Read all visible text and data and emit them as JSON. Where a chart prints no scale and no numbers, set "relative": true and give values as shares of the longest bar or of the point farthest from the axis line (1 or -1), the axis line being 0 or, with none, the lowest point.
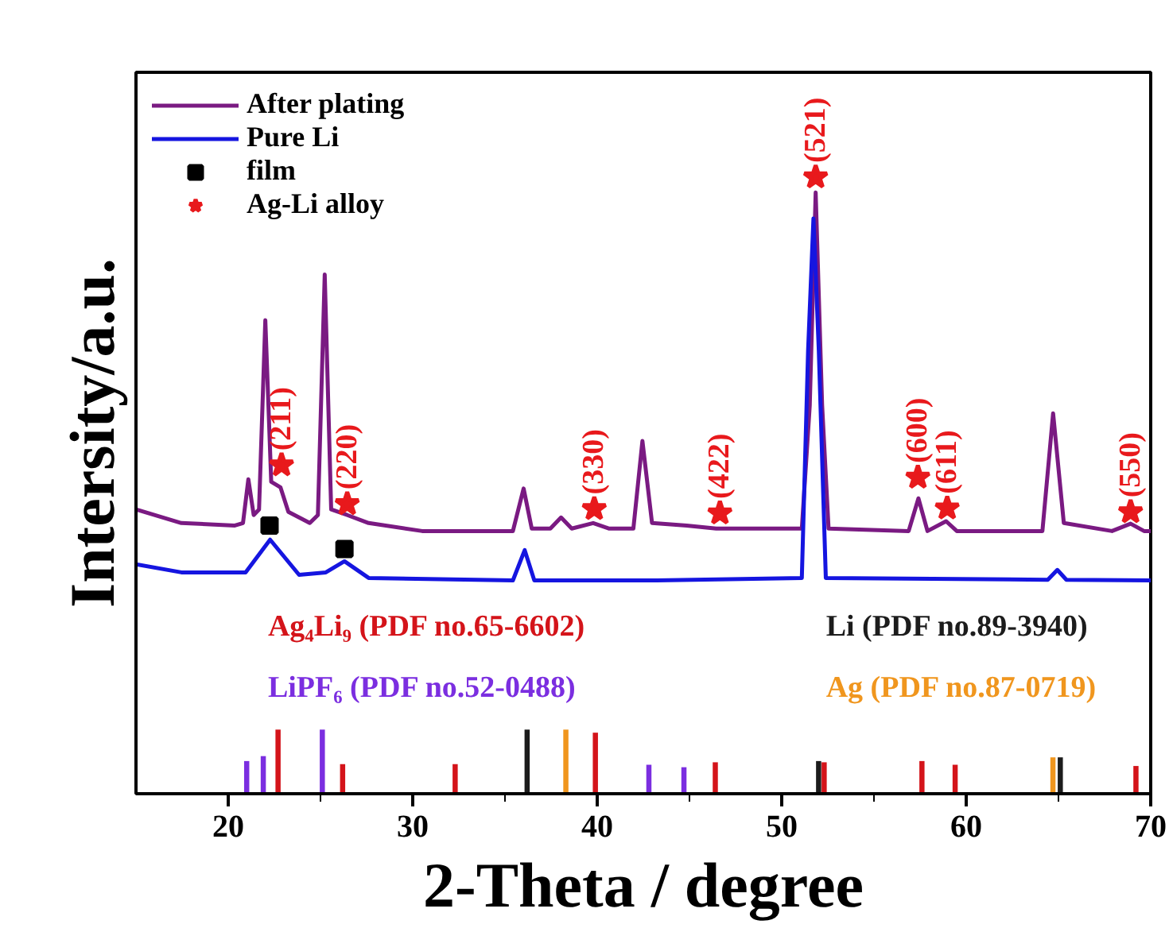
{
  "chart_data": {
    "type": "line",
    "xlabel": "2-Theta / degree",
    "ylabel": "Intersity/a.u.",
    "xlim": [
      15,
      70
    ],
    "xticks": [
      20,
      {
        "value": 25,
        "label": null
      },
      30,
      {
        "value": 35,
        "label": null
      },
      40,
      {
        "value": 45,
        "label": null
      },
      50,
      {
        "value": 55,
        "label": null
      },
      60,
      {
        "value": 65,
        "label": null
      },
      70
    ],
    "relative": true,
    "tick_labels": "x",
    "legend": "top left",
    "series": [
      {
        "name": "After plating",
        "color": "#7a1a82",
        "x": [
          15.0,
          17.46,
          20.36,
          20.8,
          21.09,
          21.38,
          21.67,
          22.01,
          22.33,
          22.83,
          23.26,
          24.42,
          24.86,
          25.23,
          25.58,
          26.45,
          27.61,
          30.51,
          35.43,
          36.01,
          36.45,
          37.46,
          38.04,
          38.62,
          39.78,
          40.65,
          41.96,
          42.45,
          42.97,
          44.85,
          46.45,
          51.09,
          51.52,
          51.84,
          52.19,
          52.54,
          56.88,
          57.41,
          57.9,
          58.91,
          59.49,
          64.13,
          64.71,
          65.29,
          67.9,
          68.91,
          69.64,
          70.0
        ],
        "values": [
          0.461,
          0.439,
          0.435,
          0.439,
          0.51,
          0.452,
          0.461,
          0.768,
          0.506,
          0.497,
          0.457,
          0.439,
          0.452,
          0.842,
          0.461,
          0.452,
          0.439,
          0.426,
          0.426,
          0.495,
          0.43,
          0.43,
          0.448,
          0.43,
          0.439,
          0.43,
          0.43,
          0.572,
          0.439,
          0.435,
          0.43,
          0.43,
          0.63,
          0.975,
          0.63,
          0.43,
          0.426,
          0.479,
          0.426,
          0.442,
          0.426,
          0.426,
          0.617,
          0.439,
          0.426,
          0.438,
          0.426,
          0.426
        ]
      },
      {
        "name": "Pure Li",
        "color": "#1515e0",
        "x": [
          15.0,
          17.46,
          20.94,
          22.27,
          23.84,
          25.29,
          26.3,
          27.61,
          35.43,
          36.07,
          36.59,
          43.25,
          51.09,
          51.43,
          51.72,
          52.01,
          52.39,
          64.42,
          64.94,
          65.43,
          70.0
        ],
        "values": [
          0.372,
          0.359,
          0.359,
          0.412,
          0.355,
          0.359,
          0.377,
          0.35,
          0.346,
          0.395,
          0.346,
          0.346,
          0.35,
          0.719,
          0.933,
          0.719,
          0.35,
          0.347,
          0.363,
          0.347,
          0.346
        ]
      },
      {
        "name": "film",
        "type": "scatter",
        "marker": "square",
        "color": "#000000",
        "x": [
          22.24,
          26.3
        ],
        "values": [
          0.435,
          0.397
        ]
      },
      {
        "name": "Ag-Li alloy",
        "type": "scatter",
        "marker": "star",
        "color": "#e8191c",
        "x": [
          22.89,
          26.45,
          39.84,
          46.65,
          51.84,
          57.38,
          58.97,
          68.91
        ],
        "values": [
          0.533,
          0.47,
          0.462,
          0.455,
          1.0,
          0.513,
          0.463,
          0.457
        ]
      },
      {
        "name": "Ag₄Li₉ (PDF no.65-6602)",
        "type": "bar",
        "color": "#d4141a",
        "x": [
          22.7,
          26.2,
          32.3,
          39.9,
          46.4,
          52.3,
          57.6,
          59.4,
          69.2
        ],
        "values": [
          0.104,
          0.048,
          0.048,
          0.099,
          0.051,
          0.051,
          0.053,
          0.047,
          0.045
        ]
      },
      {
        "name": "Li (PDF no.89-3940)",
        "type": "bar",
        "color": "#1c1c1c",
        "x": [
          36.2,
          52.0,
          65.1
        ],
        "values": [
          0.104,
          0.053,
          0.059
        ]
      },
      {
        "name": "LiPF₆ (PDF no.52-0488)",
        "type": "bar",
        "color": "#7b2ee0",
        "x": [
          21.0,
          21.9,
          25.1,
          42.8,
          44.7
        ],
        "values": [
          0.053,
          0.061,
          0.104,
          0.047,
          0.043
        ]
      },
      {
        "name": "Ag (PDF no.87-0719)",
        "type": "bar",
        "color": "#f0961e",
        "x": [
          38.3,
          64.7
        ],
        "values": [
          0.104,
          0.059
        ]
      }
    ],
    "annotations": [
      {
        "text": "(211)",
        "x": 22.89,
        "y": 0.533
      },
      {
        "text": "(220)",
        "x": 26.45,
        "y": 0.47
      },
      {
        "text": "(330)",
        "x": 39.84,
        "y": 0.462
      },
      {
        "text": "(422)",
        "x": 46.65,
        "y": 0.455
      },
      {
        "text": "(521)",
        "x": 51.84,
        "y": 1.0
      },
      {
        "text": "(600)",
        "x": 57.38,
        "y": 0.513
      },
      {
        "text": "(611)",
        "x": 58.97,
        "y": 0.463
      },
      {
        "text": "(550)",
        "x": 68.91,
        "y": 0.457
      }
    ]
  }
}
